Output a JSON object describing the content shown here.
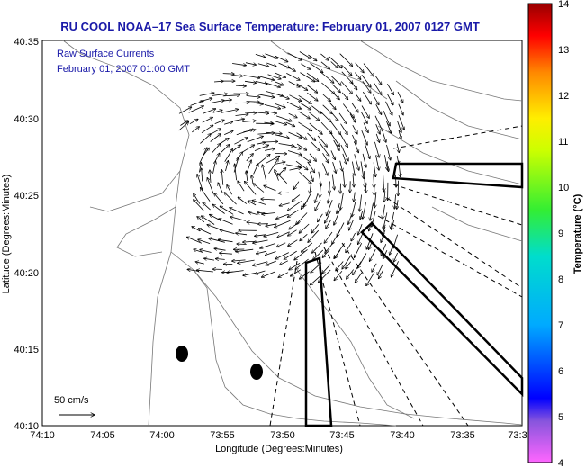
{
  "title": "RU COOL  NOAA–17  Sea Surface Temperature:  February 01, 2007 0127 GMT",
  "legend": {
    "line1": "Raw Surface Currents",
    "line2": "February 01, 2007 01:00 GMT"
  },
  "scale_label": "50 cm/s",
  "x_axis": {
    "label": "Longitude (Degrees:Minutes)",
    "ticks": [
      "74:10",
      "74:05",
      "74:00",
      "73:55",
      "73:50",
      "73:45",
      "73:40",
      "73:35",
      "73:3"
    ]
  },
  "y_axis": {
    "label": "Latitude (Degrees:Minutes)",
    "ticks": [
      "40:35",
      "40:30",
      "40:25",
      "40:20",
      "40:15",
      "40:10"
    ]
  },
  "colorbar": {
    "label": "Temperature (°C)",
    "ticks": [
      "14",
      "13",
      "12",
      "11",
      "10",
      "9",
      "8",
      "7",
      "6",
      "5",
      "4"
    ]
  }
}
